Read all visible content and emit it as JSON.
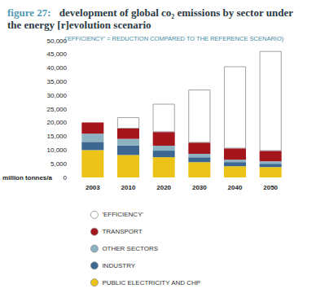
{
  "chart_data": {
    "type": "bar",
    "figure_label": "figure 27:",
    "title": "development of global co₂ emissions by sector under the energy [r]evolution scenario",
    "subtitle": "('EFFICIENCY' = REDUCTION COMPARED TO THE REFERENCE SCENARIO)",
    "y_label": "million tonnes/a",
    "categories": [
      "2003",
      "2010",
      "2020",
      "2030",
      "2040",
      "2050"
    ],
    "series": [
      {
        "name": "PUBLIC ELECTRICITY AND CHP",
        "color": "#ecc419",
        "values": [
          10000,
          8200,
          7400,
          5600,
          4100,
          3800
        ]
      },
      {
        "name": "INDUSTRY",
        "color": "#3b6790",
        "values": [
          3000,
          3500,
          2400,
          1800,
          1500,
          1200
        ]
      },
      {
        "name": "OTHER SECTORS",
        "color": "#8db3c3",
        "values": [
          3000,
          2400,
          1800,
          1200,
          900,
          900
        ]
      },
      {
        "name": "TRANSPORT",
        "color": "#a5161c",
        "values": [
          4100,
          3800,
          5000,
          4100,
          4100,
          3800
        ]
      },
      {
        "name": "'EFFICIENCY'",
        "color": "#ffffff",
        "values": [
          null,
          4100,
          10300,
          19400,
          30000,
          36500
        ]
      }
    ],
    "ylim": [
      0,
      50000
    ],
    "yticks": [
      0,
      {
        "value": 5000,
        "label": "5,000"
      },
      {
        "value": 10000,
        "label": "10,000"
      },
      {
        "value": 15000,
        "label": "15,000"
      },
      {
        "value": 20000,
        "label": "20,000"
      },
      {
        "value": 25000,
        "label": "25,000"
      },
      {
        "value": 30000,
        "label": "30,000"
      },
      {
        "value": 35000,
        "label": "35,000"
      },
      {
        "value": 40000,
        "label": "40,000"
      },
      {
        "value": 45000,
        "label": "45,000"
      },
      {
        "value": 50000,
        "label": "50,000"
      }
    ],
    "stacked": true,
    "grid": false,
    "legend": "bottom"
  }
}
